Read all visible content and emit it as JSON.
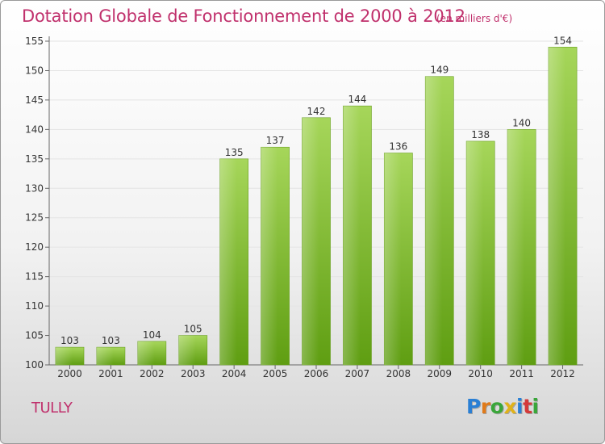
{
  "title": "Dotation Globale de Fonctionnement de 2000 à 2012",
  "unit": "(en milliers d'€)",
  "commune": "TULLY",
  "logo": {
    "letters": [
      "P",
      "r",
      "o",
      "x",
      "i",
      "t",
      "i"
    ],
    "colors": [
      "#2a7fd4",
      "#e07a1a",
      "#3aa63a",
      "#e0b21a",
      "#2a7fd4",
      "#d43a3a",
      "#3aa63a"
    ]
  },
  "colors": {
    "title": "#c0306c",
    "bar_top": "#a6d65a",
    "bar_bottom": "#5f9e12",
    "axis": "#666666",
    "grid": "#e4e4e4"
  },
  "chart_data": {
    "type": "bar",
    "categories": [
      "2000",
      "2001",
      "2002",
      "2003",
      "2004",
      "2005",
      "2006",
      "2007",
      "2008",
      "2009",
      "2010",
      "2011",
      "2012"
    ],
    "values": [
      103,
      103,
      104,
      105,
      135,
      137,
      142,
      144,
      136,
      149,
      138,
      140,
      154
    ],
    "title": "Dotation Globale de Fonctionnement de 2000 à 2012",
    "ylim": [
      100,
      155
    ],
    "yticks": [
      100,
      105,
      110,
      115,
      120,
      125,
      130,
      135,
      140,
      145,
      150,
      155
    ],
    "grid": true
  }
}
